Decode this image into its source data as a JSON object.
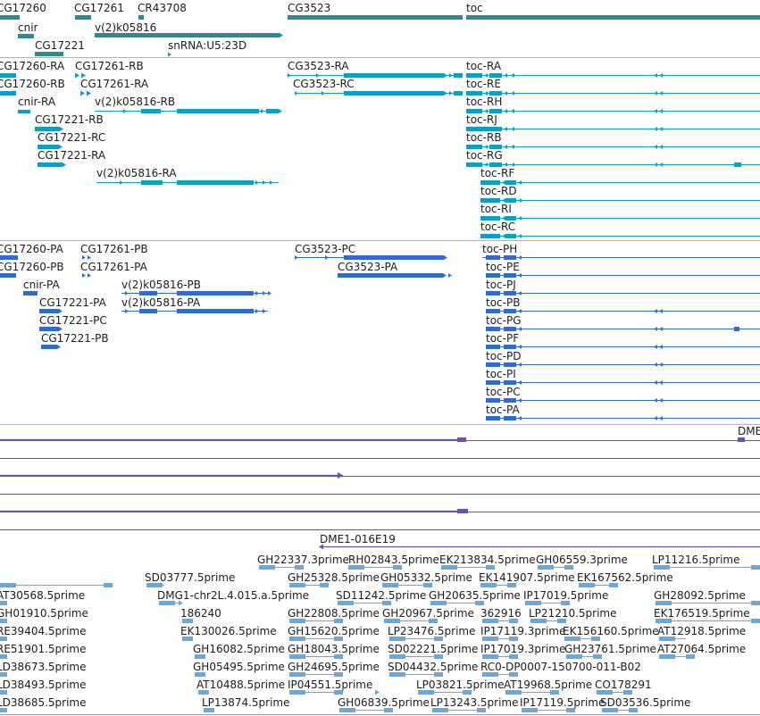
{
  "colors": {
    "gene": "#2d8a8e",
    "transcript": "#0aa0c4",
    "protein": "#2f6ccc",
    "alignment": "#6d4fae",
    "est": "#6aa8d8"
  },
  "genes": [
    {
      "label": "CG17260"
    },
    {
      "label": "CG17261"
    },
    {
      "label": "CR43708"
    },
    {
      "label": "cnir"
    },
    {
      "label": "v(2)k05816"
    },
    {
      "label": "CG17221"
    },
    {
      "label": "snRNA:U5:23D"
    },
    {
      "label": "CG3523"
    },
    {
      "label": "toc"
    }
  ],
  "transcripts": [
    {
      "label": "CG17260-RA"
    },
    {
      "label": "CG17261-RB"
    },
    {
      "label": "CG17260-RB"
    },
    {
      "label": "CG17261-RA"
    },
    {
      "label": "cnir-RA"
    },
    {
      "label": "v(2)k05816-RB"
    },
    {
      "label": "CG17221-RB"
    },
    {
      "label": "CG17221-RC"
    },
    {
      "label": "CG17221-RA"
    },
    {
      "label": "v(2)k05816-RA"
    },
    {
      "label": "CG3523-RA"
    },
    {
      "label": "CG3523-RC"
    },
    {
      "label": "toc-RA"
    },
    {
      "label": "toc-RE"
    },
    {
      "label": "toc-RH"
    },
    {
      "label": "toc-RJ"
    },
    {
      "label": "toc-RB"
    },
    {
      "label": "toc-RG"
    },
    {
      "label": "toc-RF"
    },
    {
      "label": "toc-RD"
    },
    {
      "label": "toc-RI"
    },
    {
      "label": "toc-RC"
    }
  ],
  "proteins": [
    {
      "label": "CG17260-PA"
    },
    {
      "label": "CG17261-PB"
    },
    {
      "label": "CG17260-PB"
    },
    {
      "label": "CG17261-PA"
    },
    {
      "label": "cnir-PA"
    },
    {
      "label": "v(2)k05816-PB"
    },
    {
      "label": "CG17221-PA"
    },
    {
      "label": "v(2)k05816-PA"
    },
    {
      "label": "CG17221-PC"
    },
    {
      "label": "CG17221-PB"
    },
    {
      "label": "CG3523-PC"
    },
    {
      "label": "CG3523-PA"
    },
    {
      "label": "toc-PH"
    },
    {
      "label": "toc-PE"
    },
    {
      "label": "toc-PJ"
    },
    {
      "label": "toc-PB"
    },
    {
      "label": "toc-PG"
    },
    {
      "label": "toc-PF"
    },
    {
      "label": "toc-PD"
    },
    {
      "label": "toc-PI"
    },
    {
      "label": "toc-PC"
    },
    {
      "label": "toc-PA"
    }
  ],
  "alignments": [
    {
      "label": "DME"
    },
    {
      "label": "DME1-016E19"
    }
  ],
  "ests": [
    {
      "label": "GH22337.3prime"
    },
    {
      "label": "RH02843.5prime"
    },
    {
      "label": "EK213834.5prime"
    },
    {
      "label": "GH06559.3prime"
    },
    {
      "label": "LP11216.5prime"
    },
    {
      "label": "SD03777.5prime"
    },
    {
      "label": "GH25328.5prime"
    },
    {
      "label": "GH05332.5prime"
    },
    {
      "label": "EK141907.5prime"
    },
    {
      "label": "EK167562.5prime"
    },
    {
      "label": "AT30568.5prime"
    },
    {
      "label": "DMG1-chr2L.4.015.a.5prime"
    },
    {
      "label": "SD11242.5prime"
    },
    {
      "label": "GH20635.5prime"
    },
    {
      "label": "IP17019.5prime"
    },
    {
      "label": "GH28092.5prime"
    },
    {
      "label": "GH01910.5prime"
    },
    {
      "label": "186240"
    },
    {
      "label": "GH22808.5prime"
    },
    {
      "label": "GH20967.5prime"
    },
    {
      "label": "362916"
    },
    {
      "label": "LP21210.5prime"
    },
    {
      "label": "EK176519.5prime"
    },
    {
      "label": "RE39404.5prime"
    },
    {
      "label": "EK130026.5prime"
    },
    {
      "label": "GH15620.5prime"
    },
    {
      "label": "LP23476.5prime"
    },
    {
      "label": "IP17119.3prime"
    },
    {
      "label": "EK156160.5prime"
    },
    {
      "label": "AT12918.5prime"
    },
    {
      "label": "RE51901.5prime"
    },
    {
      "label": "GH16082.5prime"
    },
    {
      "label": "GH18043.5prime"
    },
    {
      "label": "SD02221.5prime"
    },
    {
      "label": "IP17019.3prime"
    },
    {
      "label": "GH23761.5prime"
    },
    {
      "label": "AT27064.5prime"
    },
    {
      "label": "LD38673.5prime"
    },
    {
      "label": "GH05495.5prime"
    },
    {
      "label": "GH24695.5prime"
    },
    {
      "label": "SD04432.5prime"
    },
    {
      "label": "RC0-DP0007-150700-011-B02"
    },
    {
      "label": "LD38493.5prime"
    },
    {
      "label": "AT10488.5prime"
    },
    {
      "label": "IP04551.5prime"
    },
    {
      "label": "LP03821.5prime"
    },
    {
      "label": "AT19968.5prime"
    },
    {
      "label": "CO178291"
    },
    {
      "label": "LD38685.5prime"
    },
    {
      "label": "LP13874.5prime"
    },
    {
      "label": "GH06839.5prime"
    },
    {
      "label": "LP13243.5prime"
    },
    {
      "label": "IP17119.5prime"
    },
    {
      "label": "SD03536.5prime"
    }
  ]
}
